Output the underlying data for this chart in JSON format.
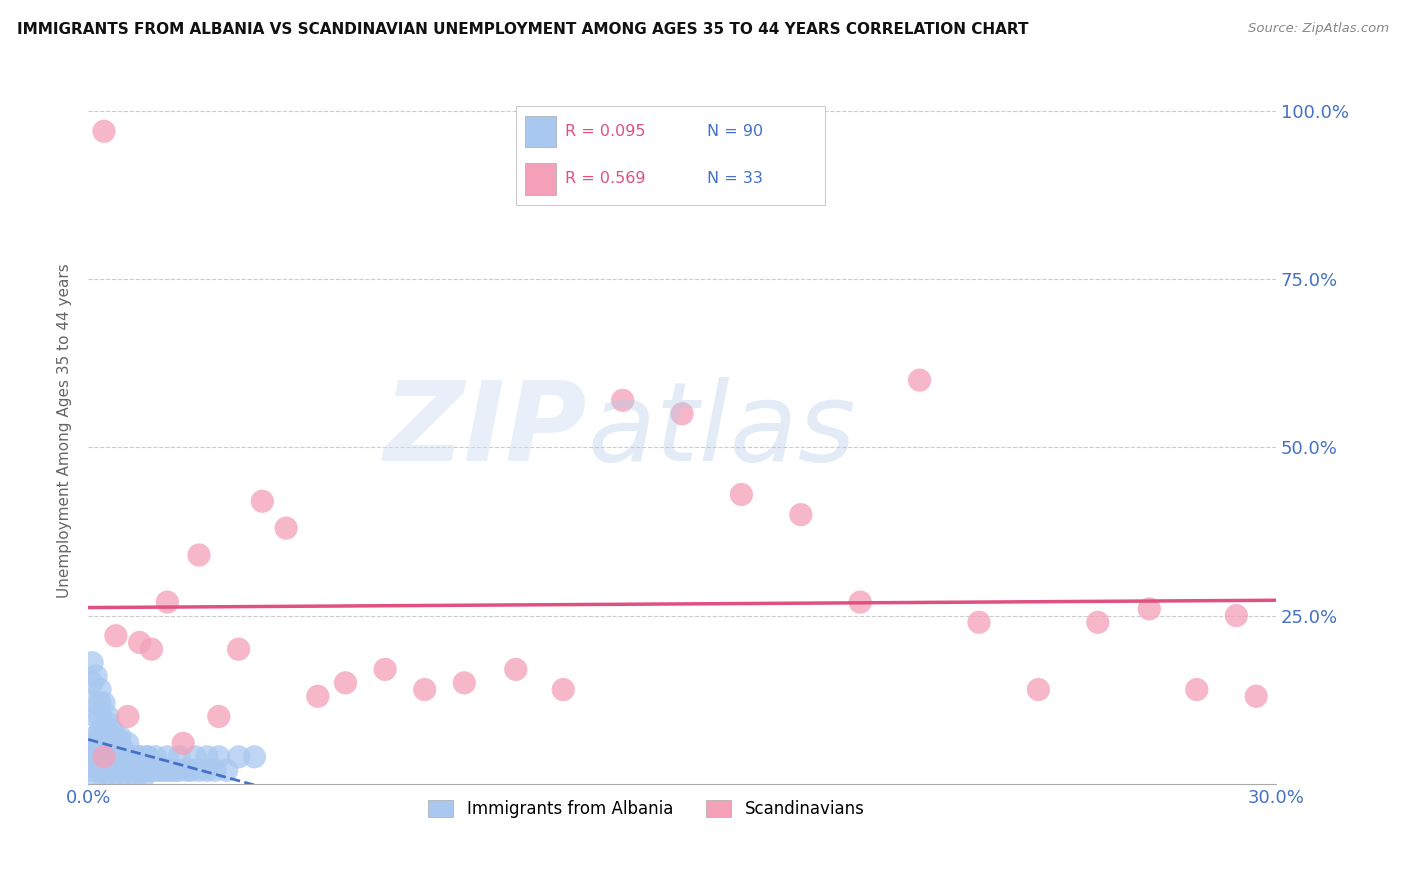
{
  "title": "IMMIGRANTS FROM ALBANIA VS SCANDINAVIAN UNEMPLOYMENT AMONG AGES 35 TO 44 YEARS CORRELATION CHART",
  "source": "Source: ZipAtlas.com",
  "ylabel": "Unemployment Among Ages 35 to 44 years",
  "legend_label1": "Immigrants from Albania",
  "legend_label2": "Scandinavians",
  "r1": "R = 0.095",
  "n1": "N = 90",
  "r2": "R = 0.569",
  "n2": "N = 33",
  "color_blue": "#a8c8f0",
  "color_pink": "#f4a0b8",
  "color_blue_dark": "#4472c4",
  "color_pink_dark": "#e05080",
  "color_axis": "#4472c4",
  "xlim": [
    0.0,
    0.3
  ],
  "ylim": [
    0.0,
    1.05
  ],
  "albania_x": [
    0.001,
    0.001,
    0.001,
    0.002,
    0.002,
    0.002,
    0.002,
    0.002,
    0.003,
    0.003,
    0.003,
    0.003,
    0.003,
    0.004,
    0.004,
    0.004,
    0.004,
    0.005,
    0.005,
    0.005,
    0.005,
    0.006,
    0.006,
    0.006,
    0.006,
    0.007,
    0.007,
    0.007,
    0.008,
    0.008,
    0.008,
    0.009,
    0.009,
    0.01,
    0.01,
    0.01,
    0.011,
    0.011,
    0.012,
    0.012,
    0.013,
    0.013,
    0.014,
    0.014,
    0.015,
    0.015,
    0.016,
    0.017,
    0.018,
    0.019,
    0.02,
    0.021,
    0.022,
    0.023,
    0.025,
    0.026,
    0.028,
    0.03,
    0.032,
    0.035,
    0.001,
    0.001,
    0.002,
    0.002,
    0.003,
    0.003,
    0.004,
    0.004,
    0.005,
    0.005,
    0.006,
    0.006,
    0.007,
    0.007,
    0.008,
    0.008,
    0.009,
    0.01,
    0.011,
    0.012,
    0.013,
    0.015,
    0.017,
    0.02,
    0.023,
    0.027,
    0.03,
    0.033,
    0.038,
    0.042
  ],
  "albania_y": [
    0.02,
    0.04,
    0.06,
    0.01,
    0.03,
    0.05,
    0.07,
    0.1,
    0.02,
    0.04,
    0.06,
    0.08,
    0.12,
    0.01,
    0.03,
    0.05,
    0.08,
    0.02,
    0.04,
    0.06,
    0.09,
    0.01,
    0.03,
    0.05,
    0.07,
    0.02,
    0.04,
    0.06,
    0.01,
    0.03,
    0.07,
    0.02,
    0.05,
    0.01,
    0.03,
    0.06,
    0.02,
    0.04,
    0.01,
    0.03,
    0.02,
    0.04,
    0.01,
    0.03,
    0.02,
    0.04,
    0.02,
    0.02,
    0.02,
    0.02,
    0.02,
    0.02,
    0.02,
    0.02,
    0.02,
    0.02,
    0.02,
    0.02,
    0.02,
    0.02,
    0.15,
    0.18,
    0.12,
    0.16,
    0.1,
    0.14,
    0.08,
    0.12,
    0.06,
    0.1,
    0.05,
    0.08,
    0.04,
    0.07,
    0.04,
    0.06,
    0.04,
    0.04,
    0.04,
    0.04,
    0.04,
    0.04,
    0.04,
    0.04,
    0.04,
    0.04,
    0.04,
    0.04,
    0.04,
    0.04
  ],
  "scandinavian_x": [
    0.004,
    0.007,
    0.01,
    0.013,
    0.016,
    0.02,
    0.024,
    0.028,
    0.033,
    0.038,
    0.044,
    0.05,
    0.058,
    0.065,
    0.075,
    0.085,
    0.095,
    0.108,
    0.12,
    0.135,
    0.15,
    0.165,
    0.18,
    0.195,
    0.21,
    0.225,
    0.24,
    0.255,
    0.268,
    0.28,
    0.004,
    0.29,
    0.295
  ],
  "scandinavian_y": [
    0.97,
    0.22,
    0.1,
    0.21,
    0.2,
    0.27,
    0.06,
    0.34,
    0.1,
    0.2,
    0.42,
    0.38,
    0.13,
    0.15,
    0.17,
    0.14,
    0.15,
    0.17,
    0.14,
    0.57,
    0.55,
    0.43,
    0.4,
    0.27,
    0.6,
    0.24,
    0.14,
    0.24,
    0.26,
    0.14,
    0.04,
    0.25,
    0.13
  ]
}
